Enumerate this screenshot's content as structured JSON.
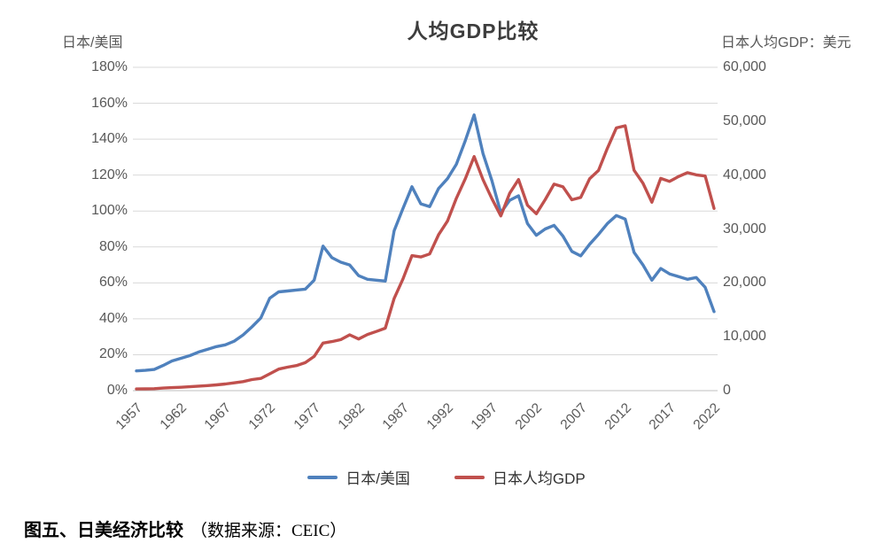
{
  "header": {
    "title": "人均GDP比较"
  },
  "axes": {
    "left_title": "日本/美国",
    "right_title": "日本人均GDP：美元",
    "left_ticks": [
      "180%",
      "160%",
      "140%",
      "120%",
      "100%",
      "80%",
      "60%",
      "40%",
      "20%",
      "0%"
    ],
    "right_ticks": [
      "60,000",
      "50,000",
      "40,000",
      "30,000",
      "20,000",
      "10,000",
      "0"
    ],
    "x_tick_years": [
      "1957",
      "1962",
      "1967",
      "1972",
      "1977",
      "1982",
      "1987",
      "1992",
      "1997",
      "2002",
      "2007",
      "2012",
      "2017",
      "2022"
    ]
  },
  "legend": [
    {
      "label": "日本/美国",
      "color": "#4F81BD"
    },
    {
      "label": "日本人均GDP",
      "color": "#C0504D"
    }
  ],
  "caption": {
    "title": "图五、日美经济比较",
    "source": "（数据来源：CEIC）"
  },
  "colors": {
    "series_blue": "#4F81BD",
    "series_red": "#C0504D",
    "gridline": "#d9d9d9",
    "axis_line": "#bfbfbf",
    "tick_text": "#595959"
  },
  "chart_data": {
    "type": "line",
    "title": "人均GDP比较",
    "x": [
      1957,
      1958,
      1959,
      1960,
      1961,
      1962,
      1963,
      1964,
      1965,
      1966,
      1967,
      1968,
      1969,
      1970,
      1971,
      1972,
      1973,
      1974,
      1975,
      1976,
      1977,
      1978,
      1979,
      1980,
      1981,
      1982,
      1983,
      1984,
      1985,
      1986,
      1987,
      1988,
      1989,
      1990,
      1991,
      1992,
      1993,
      1994,
      1995,
      1996,
      1997,
      1998,
      1999,
      2000,
      2001,
      2002,
      2003,
      2004,
      2005,
      2006,
      2007,
      2008,
      2009,
      2010,
      2011,
      2012,
      2013,
      2014,
      2015,
      2016,
      2017,
      2018,
      2019,
      2020,
      2021,
      2022
    ],
    "series": [
      {
        "name": "日本/美国",
        "axis": "left",
        "unit": "percent",
        "color": "#4F81BD",
        "values": [
          11,
          11.3,
          11.8,
          14,
          16.5,
          18,
          19.5,
          21.5,
          23,
          24.5,
          25.5,
          27.5,
          31,
          35.5,
          40.5,
          51.5,
          55,
          55.5,
          56,
          56.5,
          61.5,
          80.5,
          74,
          71.5,
          70,
          64,
          62,
          61.5,
          61,
          89,
          101.5,
          113.5,
          104,
          102.5,
          112.5,
          118,
          126,
          139,
          153.5,
          132,
          117,
          99,
          106,
          108.5,
          93,
          86.5,
          90,
          92,
          86,
          77.5,
          75,
          81.5,
          87,
          93,
          97.5,
          95.5,
          77,
          70,
          61.5,
          68,
          65,
          63.5,
          62,
          63,
          57.5,
          44
        ]
      },
      {
        "name": "日本人均GDP",
        "axis": "right",
        "unit": "USD",
        "color": "#C0504D",
        "values": [
          310,
          330,
          360,
          480,
          560,
          630,
          720,
          840,
          930,
          1070,
          1230,
          1450,
          1670,
          2060,
          2270,
          3130,
          4000,
          4350,
          4660,
          5200,
          6340,
          8820,
          9100,
          9470,
          10360,
          9580,
          10430,
          10980,
          11590,
          17110,
          20750,
          25050,
          24810,
          25370,
          28920,
          31460,
          35680,
          39270,
          43440,
          39160,
          35640,
          32440,
          36620,
          39170,
          34410,
          32830,
          35440,
          38310,
          37820,
          35430,
          35850,
          39340,
          40860,
          44970,
          48760,
          49150,
          40900,
          38480,
          34960,
          39380,
          38830,
          39730,
          40460,
          40040,
          39830,
          33820
        ]
      }
    ],
    "left_axis": {
      "label": "日本/美国",
      "range": [
        0,
        180
      ],
      "format": "percent",
      "tick_step": 20
    },
    "right_axis": {
      "label": "日本人均GDP：美元",
      "range": [
        0,
        60000
      ],
      "tick_step": 10000
    },
    "x_axis": {
      "tick_years": [
        1957,
        1962,
        1967,
        1972,
        1977,
        1982,
        1987,
        1992,
        1997,
        2002,
        2007,
        2012,
        2017,
        2022
      ],
      "label_rotation": 45
    },
    "grid": "horizontal",
    "legend_position": "bottom"
  }
}
